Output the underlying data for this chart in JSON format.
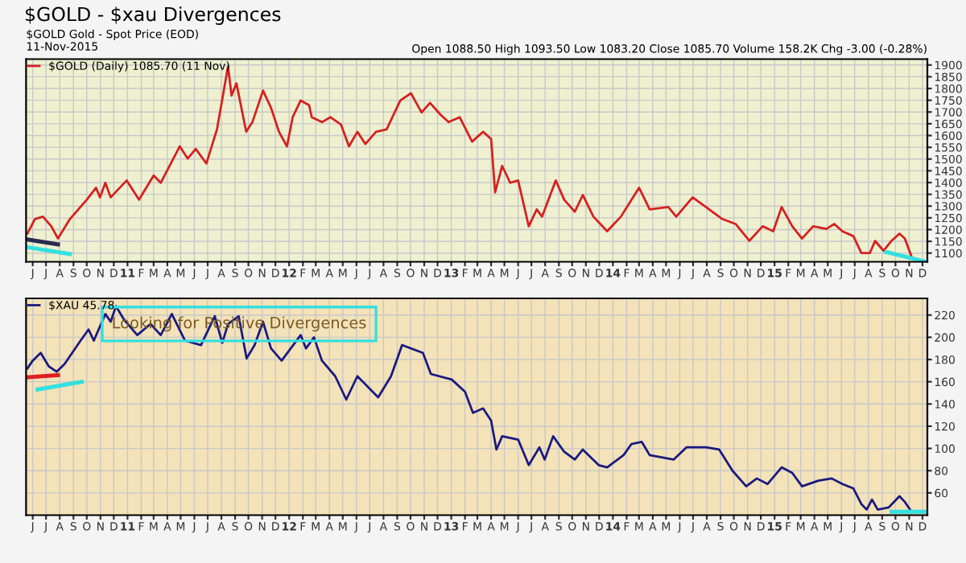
{
  "chart_data": [
    {
      "type": "line",
      "title": "$GOLD - $xau Divergences",
      "subtitle": "$GOLD Gold - Spot Price (EOD)",
      "annotations": [
        "11-Nov-2015",
        "Open 1088.50 High 1093.50 Low 1083.20 Close 1085.70 Volume 158.2K Chg -3.00 (-0.28%)"
      ],
      "xlim": [
        "2010-05-17",
        "2015-12-12"
      ],
      "ylim": [
        1063,
        1925
      ],
      "yticks": [
        1100,
        1150,
        1200,
        1250,
        1300,
        1350,
        1400,
        1450,
        1500,
        1550,
        1600,
        1650,
        1700,
        1750,
        1800,
        1850,
        1900
      ],
      "xticks": [
        {
          "value": "2010-06-01",
          "label": "J"
        },
        {
          "value": "2010-07-01",
          "label": "J"
        },
        {
          "value": "2010-08-01",
          "label": "A"
        },
        {
          "value": "2010-09-01",
          "label": "S"
        },
        {
          "value": "2010-10-01",
          "label": "O"
        },
        {
          "value": "2010-11-01",
          "label": "N"
        },
        {
          "value": "2010-12-01",
          "label": "D"
        },
        {
          "value": "2011-01-01",
          "label": "11"
        },
        {
          "value": "2011-02-01",
          "label": "F"
        },
        {
          "value": "2011-03-01",
          "label": "M"
        },
        {
          "value": "2011-04-01",
          "label": "A"
        },
        {
          "value": "2011-05-01",
          "label": "M"
        },
        {
          "value": "2011-06-01",
          "label": "J"
        },
        {
          "value": "2011-07-01",
          "label": "J"
        },
        {
          "value": "2011-08-01",
          "label": "A"
        },
        {
          "value": "2011-09-01",
          "label": "S"
        },
        {
          "value": "2011-10-01",
          "label": "O"
        },
        {
          "value": "2011-11-01",
          "label": "N"
        },
        {
          "value": "2011-12-01",
          "label": "D"
        },
        {
          "value": "2012-01-01",
          "label": "12"
        },
        {
          "value": "2012-02-01",
          "label": "F"
        },
        {
          "value": "2012-03-01",
          "label": "M"
        },
        {
          "value": "2012-04-01",
          "label": "A"
        },
        {
          "value": "2012-05-01",
          "label": "M"
        },
        {
          "value": "2012-06-01",
          "label": "J"
        },
        {
          "value": "2012-07-01",
          "label": "J"
        },
        {
          "value": "2012-08-01",
          "label": "A"
        },
        {
          "value": "2012-09-01",
          "label": "S"
        },
        {
          "value": "2012-10-01",
          "label": "O"
        },
        {
          "value": "2012-11-01",
          "label": "N"
        },
        {
          "value": "2012-12-01",
          "label": "D"
        },
        {
          "value": "2013-01-01",
          "label": "13"
        },
        {
          "value": "2013-02-01",
          "label": "F"
        },
        {
          "value": "2013-03-01",
          "label": "M"
        },
        {
          "value": "2013-04-01",
          "label": "A"
        },
        {
          "value": "2013-05-01",
          "label": "M"
        },
        {
          "value": "2013-06-01",
          "label": "J"
        },
        {
          "value": "2013-07-01",
          "label": "J"
        },
        {
          "value": "2013-08-01",
          "label": "A"
        },
        {
          "value": "2013-09-01",
          "label": "S"
        },
        {
          "value": "2013-10-01",
          "label": "O"
        },
        {
          "value": "2013-11-01",
          "label": "N"
        },
        {
          "value": "2013-12-01",
          "label": "D"
        },
        {
          "value": "2014-01-01",
          "label": "14"
        },
        {
          "value": "2014-02-01",
          "label": "F"
        },
        {
          "value": "2014-03-01",
          "label": "M"
        },
        {
          "value": "2014-04-01",
          "label": "A"
        },
        {
          "value": "2014-05-01",
          "label": "M"
        },
        {
          "value": "2014-06-01",
          "label": "J"
        },
        {
          "value": "2014-07-01",
          "label": "J"
        },
        {
          "value": "2014-08-01",
          "label": "A"
        },
        {
          "value": "2014-09-01",
          "label": "S"
        },
        {
          "value": "2014-10-01",
          "label": "O"
        },
        {
          "value": "2014-11-01",
          "label": "N"
        },
        {
          "value": "2014-12-01",
          "label": "D"
        },
        {
          "value": "2015-01-01",
          "label": "15"
        },
        {
          "value": "2015-02-01",
          "label": "F"
        },
        {
          "value": "2015-03-01",
          "label": "M"
        },
        {
          "value": "2015-04-01",
          "label": "A"
        },
        {
          "value": "2015-05-01",
          "label": "M"
        },
        {
          "value": "2015-06-01",
          "label": "J"
        },
        {
          "value": "2015-07-01",
          "label": "J"
        },
        {
          "value": "2015-08-01",
          "label": "A"
        },
        {
          "value": "2015-09-01",
          "label": "S"
        },
        {
          "value": "2015-10-01",
          "label": "O"
        },
        {
          "value": "2015-11-01",
          "label": "N"
        },
        {
          "value": "2015-12-01",
          "label": "D"
        }
      ],
      "grid": true,
      "legend": "top left",
      "series": [
        {
          "name": "$GOLD (Daily) 1085.70 (11 Nov)",
          "color": "#d62020",
          "x": [
            "2010-05-20",
            "2010-06-06",
            "2010-06-24",
            "2010-07-13",
            "2010-07-28",
            "2010-08-24",
            "2010-10-01",
            "2010-10-22",
            "2010-10-31",
            "2010-11-12",
            "2010-11-24",
            "2010-12-30",
            "2011-01-27",
            "2011-03-01",
            "2011-03-17",
            "2011-04-29",
            "2011-05-17",
            "2011-06-04",
            "2011-06-28",
            "2011-07-22",
            "2011-08-16",
            "2011-08-24",
            "2011-09-04",
            "2011-09-26",
            "2011-10-10",
            "2011-11-03",
            "2011-11-21",
            "2011-12-09",
            "2011-12-27",
            "2012-01-09",
            "2012-01-27",
            "2012-02-15",
            "2012-02-21",
            "2012-03-15",
            "2012-04-03",
            "2012-04-27",
            "2012-05-15",
            "2012-06-03",
            "2012-06-21",
            "2012-07-15",
            "2012-08-08",
            "2012-09-08",
            "2012-10-02",
            "2012-10-26",
            "2012-11-14",
            "2012-12-08",
            "2012-12-26",
            "2013-01-20",
            "2013-02-17",
            "2013-03-14",
            "2013-04-01",
            "2013-04-10",
            "2013-04-26",
            "2013-05-14",
            "2013-06-01",
            "2013-06-25",
            "2013-07-13",
            "2013-07-25",
            "2013-08-25",
            "2013-09-13",
            "2013-10-07",
            "2013-10-25",
            "2013-11-18",
            "2013-12-19",
            "2014-01-19",
            "2014-03-01",
            "2014-03-25",
            "2014-05-06",
            "2014-05-24",
            "2014-06-30",
            "2014-07-30",
            "2014-09-05",
            "2014-10-05",
            "2014-11-05",
            "2014-12-05",
            "2014-12-29",
            "2015-01-17",
            "2015-02-10",
            "2015-03-04",
            "2015-03-29",
            "2015-04-28",
            "2015-05-16",
            "2015-06-03",
            "2015-06-28",
            "2015-07-16",
            "2015-08-04",
            "2015-08-16",
            "2015-09-04",
            "2015-09-22",
            "2015-10-10",
            "2015-10-22",
            "2015-11-06"
          ],
          "values": [
            1183,
            1245,
            1255,
            1214,
            1162,
            1245,
            1327,
            1378,
            1337,
            1399,
            1337,
            1409,
            1327,
            1430,
            1399,
            1554,
            1502,
            1543,
            1481,
            1626,
            1894,
            1770,
            1822,
            1616,
            1657,
            1791,
            1718,
            1616,
            1554,
            1678,
            1749,
            1729,
            1678,
            1657,
            1678,
            1647,
            1554,
            1616,
            1564,
            1616,
            1626,
            1749,
            1780,
            1698,
            1739,
            1688,
            1657,
            1678,
            1574,
            1616,
            1585,
            1358,
            1471,
            1399,
            1409,
            1214,
            1286,
            1255,
            1409,
            1327,
            1276,
            1347,
            1255,
            1193,
            1255,
            1378,
            1286,
            1296,
            1255,
            1337,
            1296,
            1245,
            1224,
            1152,
            1214,
            1193,
            1296,
            1214,
            1162,
            1214,
            1203,
            1224,
            1193,
            1172,
            1100,
            1100,
            1152,
            1110,
            1152,
            1183,
            1162,
            1086
          ]
        },
        {
          "color": "#2a2a50",
          "x": [
            "2010-05-20",
            "2010-07-28"
          ],
          "values": [
            1158,
            1137
          ]
        },
        {
          "color": "#33e0e0",
          "x": [
            "2010-05-20",
            "2010-08-24"
          ],
          "values": [
            1125,
            1096
          ]
        },
        {
          "color": "#33e0e0",
          "x": [
            "2015-09-10",
            "2015-12-10"
          ],
          "values": [
            1104,
            1063
          ]
        }
      ]
    },
    {
      "type": "line",
      "annotations": [
        {
          "text": "Looking for Positive Divergences",
          "x": "2011-09-10",
          "y": 212
        }
      ],
      "xlim": [
        "2010-05-17",
        "2015-12-12"
      ],
      "ylim": [
        40,
        235
      ],
      "yticks": [
        60,
        80,
        100,
        120,
        140,
        160,
        180,
        200,
        220
      ],
      "xticks": [
        {
          "value": "2010-06-01",
          "label": "J"
        },
        {
          "value": "2010-07-01",
          "label": "J"
        },
        {
          "value": "2010-08-01",
          "label": "A"
        },
        {
          "value": "2010-09-01",
          "label": "S"
        },
        {
          "value": "2010-10-01",
          "label": "O"
        },
        {
          "value": "2010-11-01",
          "label": "N"
        },
        {
          "value": "2010-12-01",
          "label": "D"
        },
        {
          "value": "2011-01-01",
          "label": "11"
        },
        {
          "value": "2011-02-01",
          "label": "F"
        },
        {
          "value": "2011-03-01",
          "label": "M"
        },
        {
          "value": "2011-04-01",
          "label": "A"
        },
        {
          "value": "2011-05-01",
          "label": "M"
        },
        {
          "value": "2011-06-01",
          "label": "J"
        },
        {
          "value": "2011-07-01",
          "label": "J"
        },
        {
          "value": "2011-08-01",
          "label": "A"
        },
        {
          "value": "2011-09-01",
          "label": "S"
        },
        {
          "value": "2011-10-01",
          "label": "O"
        },
        {
          "value": "2011-11-01",
          "label": "N"
        },
        {
          "value": "2011-12-01",
          "label": "D"
        },
        {
          "value": "2012-01-01",
          "label": "12"
        },
        {
          "value": "2012-02-01",
          "label": "F"
        },
        {
          "value": "2012-03-01",
          "label": "M"
        },
        {
          "value": "2012-04-01",
          "label": "A"
        },
        {
          "value": "2012-05-01",
          "label": "M"
        },
        {
          "value": "2012-06-01",
          "label": "J"
        },
        {
          "value": "2012-07-01",
          "label": "J"
        },
        {
          "value": "2012-08-01",
          "label": "A"
        },
        {
          "value": "2012-09-01",
          "label": "S"
        },
        {
          "value": "2012-10-01",
          "label": "O"
        },
        {
          "value": "2012-11-01",
          "label": "N"
        },
        {
          "value": "2012-12-01",
          "label": "D"
        },
        {
          "value": "2013-01-01",
          "label": "13"
        },
        {
          "value": "2013-02-01",
          "label": "F"
        },
        {
          "value": "2013-03-01",
          "label": "M"
        },
        {
          "value": "2013-04-01",
          "label": "A"
        },
        {
          "value": "2013-05-01",
          "label": "M"
        },
        {
          "value": "2013-06-01",
          "label": "J"
        },
        {
          "value": "2013-07-01",
          "label": "J"
        },
        {
          "value": "2013-08-01",
          "label": "A"
        },
        {
          "value": "2013-09-01",
          "label": "S"
        },
        {
          "value": "2013-10-01",
          "label": "O"
        },
        {
          "value": "2013-11-01",
          "label": "N"
        },
        {
          "value": "2013-12-01",
          "label": "D"
        },
        {
          "value": "2014-01-01",
          "label": "14"
        },
        {
          "value": "2014-02-01",
          "label": "F"
        },
        {
          "value": "2014-03-01",
          "label": "M"
        },
        {
          "value": "2014-04-01",
          "label": "A"
        },
        {
          "value": "2014-05-01",
          "label": "M"
        },
        {
          "value": "2014-06-01",
          "label": "J"
        },
        {
          "value": "2014-07-01",
          "label": "J"
        },
        {
          "value": "2014-08-01",
          "label": "A"
        },
        {
          "value": "2014-09-01",
          "label": "S"
        },
        {
          "value": "2014-10-01",
          "label": "O"
        },
        {
          "value": "2014-11-01",
          "label": "N"
        },
        {
          "value": "2014-12-01",
          "label": "D"
        },
        {
          "value": "2015-01-01",
          "label": "15"
        },
        {
          "value": "2015-02-01",
          "label": "F"
        },
        {
          "value": "2015-03-01",
          "label": "M"
        },
        {
          "value": "2015-04-01",
          "label": "A"
        },
        {
          "value": "2015-05-01",
          "label": "M"
        },
        {
          "value": "2015-06-01",
          "label": "J"
        },
        {
          "value": "2015-07-01",
          "label": "J"
        },
        {
          "value": "2015-08-01",
          "label": "A"
        },
        {
          "value": "2015-09-01",
          "label": "S"
        },
        {
          "value": "2015-10-01",
          "label": "O"
        },
        {
          "value": "2015-11-01",
          "label": "N"
        },
        {
          "value": "2015-12-01",
          "label": "D"
        }
      ],
      "grid": true,
      "legend": "top left",
      "series": [
        {
          "name": "$XAU 45.78",
          "color": "#1a1a80",
          "x": [
            "2010-05-20",
            "2010-06-01",
            "2010-06-19",
            "2010-07-07",
            "2010-07-25",
            "2010-08-12",
            "2010-09-17",
            "2010-10-05",
            "2010-10-17",
            "2010-11-12",
            "2010-11-24",
            "2010-12-06",
            "2010-12-24",
            "2011-01-23",
            "2011-02-22",
            "2011-03-17",
            "2011-04-11",
            "2011-05-11",
            "2011-06-16",
            "2011-07-17",
            "2011-08-03",
            "2011-08-16",
            "2011-09-09",
            "2011-09-27",
            "2011-10-15",
            "2011-11-03",
            "2011-11-21",
            "2011-12-15",
            "2012-01-27",
            "2012-02-08",
            "2012-02-26",
            "2012-03-15",
            "2012-04-14",
            "2012-05-09",
            "2012-06-03",
            "2012-07-20",
            "2012-08-18",
            "2012-09-12",
            "2012-10-29",
            "2012-11-16",
            "2013-01-02",
            "2013-02-01",
            "2013-02-19",
            "2013-03-14",
            "2013-04-01",
            "2013-04-13",
            "2013-04-26",
            "2013-06-01",
            "2013-06-25",
            "2013-07-19",
            "2013-07-31",
            "2013-08-19",
            "2013-09-13",
            "2013-10-07",
            "2013-10-25",
            "2013-11-30",
            "2013-12-19",
            "2014-01-25",
            "2014-02-12",
            "2014-03-07",
            "2014-03-25",
            "2014-05-18",
            "2014-06-16",
            "2014-07-30",
            "2014-08-29",
            "2014-09-28",
            "2014-10-29",
            "2014-11-22",
            "2014-12-16",
            "2015-01-17",
            "2015-02-10",
            "2015-03-04",
            "2015-04-10",
            "2015-05-10",
            "2015-06-03",
            "2015-06-28",
            "2015-07-16",
            "2015-07-28",
            "2015-08-09",
            "2015-08-22",
            "2015-09-16",
            "2015-10-10",
            "2015-10-22",
            "2015-11-03"
          ],
          "values": [
            172,
            179,
            186,
            174,
            169,
            176,
            197,
            207,
            197,
            221,
            214,
            228,
            216,
            202,
            212,
            202,
            221,
            197,
            193,
            219,
            195,
            212,
            219,
            181,
            193,
            214,
            190,
            179,
            202,
            190,
            200,
            179,
            165,
            144,
            165,
            146,
            165,
            193,
            186,
            167,
            162,
            151,
            132,
            136,
            125,
            99,
            111,
            108,
            85,
            101,
            90,
            111,
            97,
            90,
            99,
            85,
            83,
            94,
            104,
            106,
            94,
            90,
            101,
            101,
            99,
            80,
            66,
            73,
            68,
            83,
            78,
            66,
            71,
            73,
            68,
            64,
            50,
            45,
            54,
            45,
            47,
            57,
            52,
            45
          ]
        },
        {
          "color": "#e02020",
          "x": [
            "2010-05-17",
            "2010-07-28"
          ],
          "values": [
            164,
            166
          ]
        },
        {
          "color": "#33e0e0",
          "x": [
            "2010-06-12",
            "2010-09-20"
          ],
          "values": [
            153,
            160
          ]
        },
        {
          "color": "#33e0e0",
          "x": [
            "2015-09-22",
            "2015-12-08"
          ],
          "values": [
            43,
            43
          ]
        }
      ]
    }
  ]
}
